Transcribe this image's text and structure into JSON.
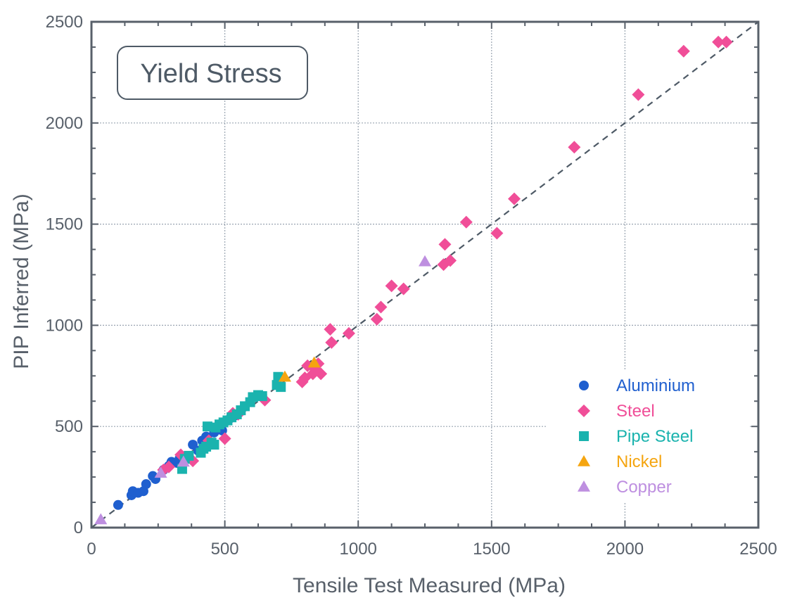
{
  "chart_data": {
    "type": "scatter",
    "title": "Yield Stress",
    "xlabel": "Tensile Test Measured (MPa)",
    "ylabel": "PIP Inferred (MPa)",
    "xlim": [
      0,
      2500
    ],
    "ylim": [
      0,
      2500
    ],
    "xticks": [
      0,
      500,
      1000,
      1500,
      2000,
      2500
    ],
    "yticks": [
      0,
      500,
      1000,
      1500,
      2000,
      2500
    ],
    "xtick_labels": [
      "0",
      "500",
      "1000",
      "1500",
      "2000",
      "2500"
    ],
    "ytick_labels": [
      "0",
      "500",
      "1000",
      "1500",
      "2000",
      "2500"
    ],
    "grid": true,
    "legend_position": "lower-right",
    "reference_line": {
      "style": "dashed",
      "from": [
        0,
        0
      ],
      "to": [
        2500,
        2500
      ]
    },
    "series": [
      {
        "name": "Aluminium",
        "marker": "circle",
        "color": "#1f5fcf",
        "points": [
          [
            100,
            112
          ],
          [
            150,
            160
          ],
          [
            155,
            180
          ],
          [
            175,
            172
          ],
          [
            195,
            180
          ],
          [
            205,
            215
          ],
          [
            230,
            255
          ],
          [
            240,
            240
          ],
          [
            270,
            285
          ],
          [
            290,
            305
          ],
          [
            300,
            325
          ],
          [
            320,
            320
          ],
          [
            330,
            340
          ],
          [
            380,
            410
          ],
          [
            400,
            380
          ],
          [
            415,
            430
          ],
          [
            430,
            450
          ],
          [
            460,
            470
          ],
          [
            490,
            480
          ],
          [
            520,
            540
          ],
          [
            540,
            555
          ]
        ]
      },
      {
        "name": "Steel",
        "marker": "diamond",
        "color": "#f04e98",
        "points": [
          [
            270,
            285
          ],
          [
            290,
            300
          ],
          [
            335,
            360
          ],
          [
            380,
            330
          ],
          [
            440,
            430
          ],
          [
            500,
            440
          ],
          [
            530,
            565
          ],
          [
            550,
            560
          ],
          [
            650,
            630
          ],
          [
            790,
            720
          ],
          [
            800,
            740
          ],
          [
            810,
            800
          ],
          [
            830,
            760
          ],
          [
            840,
            780
          ],
          [
            850,
            810
          ],
          [
            860,
            760
          ],
          [
            895,
            980
          ],
          [
            900,
            915
          ],
          [
            965,
            960
          ],
          [
            1070,
            1030
          ],
          [
            1085,
            1090
          ],
          [
            1125,
            1195
          ],
          [
            1170,
            1180
          ],
          [
            1320,
            1300
          ],
          [
            1325,
            1400
          ],
          [
            1345,
            1320
          ],
          [
            1405,
            1510
          ],
          [
            1520,
            1455
          ],
          [
            1585,
            1625
          ],
          [
            1810,
            1880
          ],
          [
            2050,
            2140
          ],
          [
            2220,
            2355
          ],
          [
            2350,
            2400
          ],
          [
            2380,
            2400
          ]
        ]
      },
      {
        "name": "Pipe Steel",
        "marker": "square",
        "color": "#1ab3ae",
        "points": [
          [
            340,
            290
          ],
          [
            350,
            340
          ],
          [
            365,
            355
          ],
          [
            410,
            370
          ],
          [
            420,
            390
          ],
          [
            430,
            400
          ],
          [
            435,
            500
          ],
          [
            450,
            420
          ],
          [
            460,
            410
          ],
          [
            465,
            495
          ],
          [
            480,
            510
          ],
          [
            495,
            520
          ],
          [
            510,
            530
          ],
          [
            525,
            545
          ],
          [
            545,
            560
          ],
          [
            560,
            580
          ],
          [
            575,
            600
          ],
          [
            595,
            620
          ],
          [
            605,
            645
          ],
          [
            625,
            655
          ],
          [
            640,
            650
          ],
          [
            695,
            705
          ],
          [
            700,
            745
          ],
          [
            710,
            695
          ]
        ]
      },
      {
        "name": "Nickel",
        "marker": "triangle",
        "color": "#f5a510",
        "points": [
          [
            725,
            745
          ],
          [
            835,
            815
          ]
        ]
      },
      {
        "name": "Copper",
        "marker": "triangle",
        "color": "#be8fe0",
        "points": [
          [
            35,
            40
          ],
          [
            260,
            270
          ],
          [
            345,
            325
          ],
          [
            1250,
            1315
          ]
        ]
      }
    ]
  }
}
